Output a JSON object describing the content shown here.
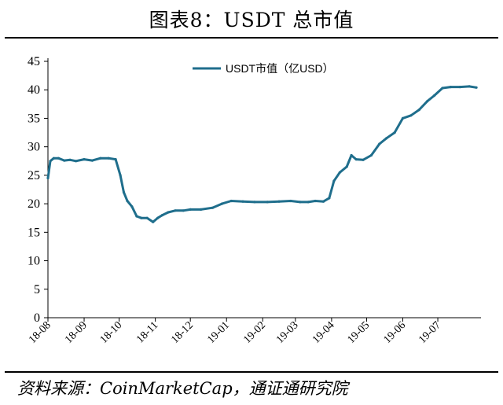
{
  "page": {
    "title": "图表8：USDT 总市值",
    "source": "资料来源：CoinMarketCap，通证通研究院"
  },
  "colors": {
    "line": "#1f6e8c",
    "axis": "#000000"
  },
  "chart_data": {
    "type": "line",
    "title": "图表8：USDT 总市值",
    "xlabel": "",
    "ylabel": "",
    "ylim": [
      0,
      45
    ],
    "yticks": [
      0,
      5,
      10,
      15,
      20,
      25,
      30,
      35,
      40,
      45
    ],
    "xticks": [
      "18-08",
      "18-09",
      "18-10",
      "18-11",
      "18-12",
      "19-01",
      "19-02",
      "19-03",
      "19-04",
      "19-05",
      "19-06",
      "19-07"
    ],
    "legend": {
      "position": "top-center"
    },
    "grid": false,
    "series": [
      {
        "name": "USDT市值（亿USD）",
        "x": [
          "2018-08-01",
          "2018-08-03",
          "2018-08-06",
          "2018-08-10",
          "2018-08-15",
          "2018-08-20",
          "2018-08-25",
          "2018-09-01",
          "2018-09-08",
          "2018-09-15",
          "2018-09-22",
          "2018-09-28",
          "2018-10-02",
          "2018-10-05",
          "2018-10-08",
          "2018-10-12",
          "2018-10-16",
          "2018-10-20",
          "2018-10-25",
          "2018-10-30",
          "2018-11-03",
          "2018-11-07",
          "2018-11-12",
          "2018-11-18",
          "2018-11-25",
          "2018-12-01",
          "2018-12-10",
          "2018-12-20",
          "2018-12-28",
          "2019-01-05",
          "2019-01-15",
          "2019-01-25",
          "2019-02-05",
          "2019-02-15",
          "2019-02-25",
          "2019-03-05",
          "2019-03-12",
          "2019-03-18",
          "2019-03-25",
          "2019-03-30",
          "2019-04-03",
          "2019-04-08",
          "2019-04-14",
          "2019-04-18",
          "2019-04-22",
          "2019-04-28",
          "2019-05-05",
          "2019-05-12",
          "2019-05-18",
          "2019-05-25",
          "2019-06-01",
          "2019-06-08",
          "2019-06-15",
          "2019-06-22",
          "2019-06-28",
          "2019-07-05",
          "2019-07-12",
          "2019-07-20",
          "2019-07-28",
          "2019-08-03"
        ],
        "values": [
          24.5,
          27.5,
          28.0,
          28.0,
          27.6,
          27.7,
          27.5,
          27.8,
          27.6,
          28.0,
          28.0,
          27.8,
          25.0,
          22.0,
          20.5,
          19.5,
          17.8,
          17.5,
          17.5,
          16.8,
          17.5,
          18.0,
          18.5,
          18.8,
          18.8,
          19.0,
          19.0,
          19.3,
          20.0,
          20.5,
          20.4,
          20.3,
          20.3,
          20.4,
          20.5,
          20.3,
          20.3,
          20.5,
          20.4,
          21.0,
          24.0,
          25.5,
          26.5,
          28.5,
          27.8,
          27.7,
          28.5,
          30.5,
          31.5,
          32.5,
          35.0,
          35.5,
          36.5,
          38.0,
          39.0,
          40.3,
          40.5,
          40.5,
          40.6,
          40.4
        ]
      }
    ]
  }
}
